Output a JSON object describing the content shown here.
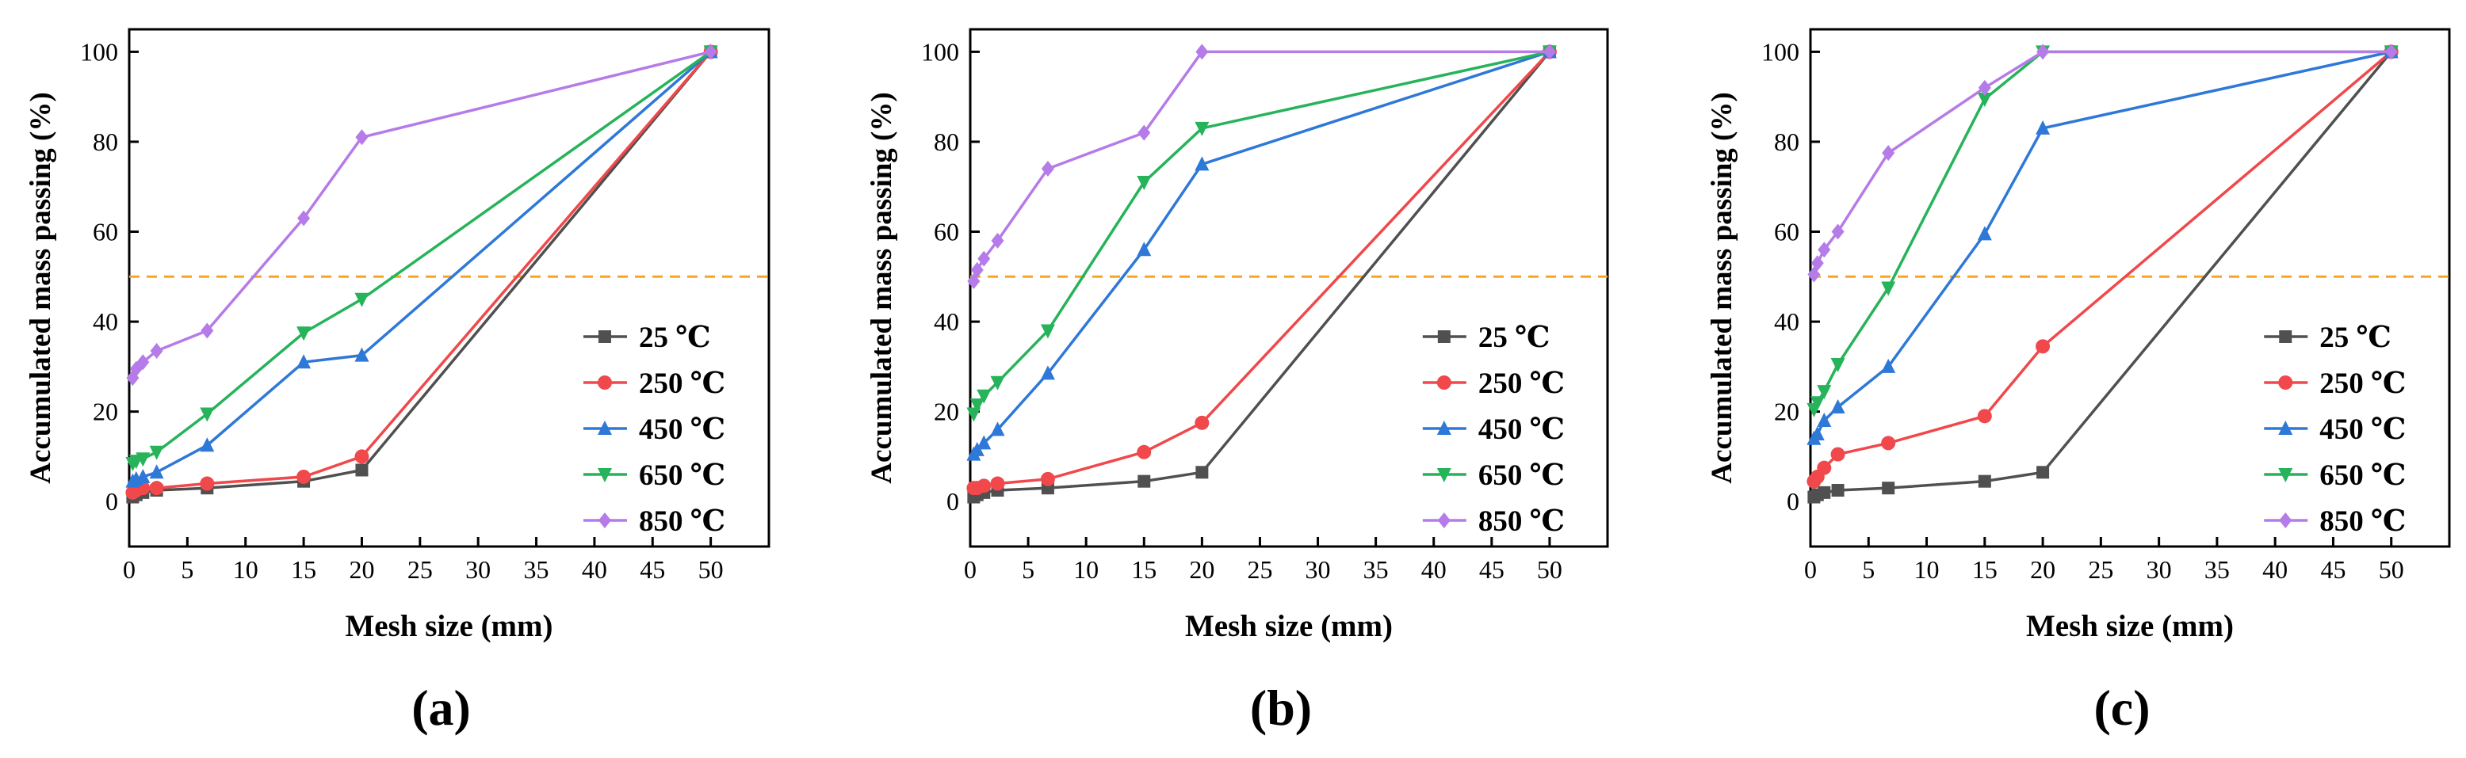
{
  "chart_data": [
    {
      "type": "line",
      "panel_label": "(a)",
      "xlabel": "Mesh size (mm)",
      "ylabel": "Accumulated mass passing (%)",
      "xlim": [
        0,
        55
      ],
      "ylim": [
        -10,
        105
      ],
      "xticks": [
        0,
        5,
        10,
        15,
        20,
        25,
        30,
        35,
        40,
        45,
        50
      ],
      "yticks": [
        0,
        20,
        40,
        60,
        80,
        100
      ],
      "reference_line": {
        "y": 50,
        "style": "dashed",
        "color": "#F5A623"
      },
      "legend_position": "lower-right",
      "series": [
        {
          "name": "25 ℃",
          "color": "#505050",
          "marker": "square",
          "points": [
            [
              0.3,
              1
            ],
            [
              0.6,
              1.5
            ],
            [
              1.18,
              2
            ],
            [
              2.36,
              2.5
            ],
            [
              6.7,
              3
            ],
            [
              15,
              4.5
            ],
            [
              20,
              7
            ],
            [
              50,
              100
            ]
          ]
        },
        {
          "name": "250 ℃",
          "color": "#F0484B",
          "marker": "circle",
          "points": [
            [
              0.3,
              2
            ],
            [
              0.6,
              2.5
            ],
            [
              1.18,
              3
            ],
            [
              2.36,
              3
            ],
            [
              6.7,
              4
            ],
            [
              15,
              5.5
            ],
            [
              20,
              10
            ],
            [
              50,
              100
            ]
          ]
        },
        {
          "name": "450 ℃",
          "color": "#2E78D8",
          "marker": "triangle-up",
          "points": [
            [
              0.3,
              4.5
            ],
            [
              0.6,
              5
            ],
            [
              1.18,
              5.5
            ],
            [
              2.36,
              6.5
            ],
            [
              6.7,
              12.5
            ],
            [
              15,
              31
            ],
            [
              20,
              32.5
            ],
            [
              50,
              100
            ]
          ]
        },
        {
          "name": "650 ℃",
          "color": "#26B35A",
          "marker": "triangle-down",
          "points": [
            [
              0.3,
              8.5
            ],
            [
              0.6,
              9
            ],
            [
              1.18,
              9.5
            ],
            [
              2.36,
              11
            ],
            [
              6.7,
              19.5
            ],
            [
              15,
              37.5
            ],
            [
              20,
              45
            ],
            [
              50,
              100
            ]
          ]
        },
        {
          "name": "850 ℃",
          "color": "#B57BE8",
          "marker": "diamond",
          "points": [
            [
              0.3,
              27.5
            ],
            [
              0.6,
              29.5
            ],
            [
              1.18,
              31
            ],
            [
              2.36,
              33.5
            ],
            [
              6.7,
              38
            ],
            [
              15,
              63
            ],
            [
              20,
              81
            ],
            [
              50,
              100
            ]
          ]
        }
      ]
    },
    {
      "type": "line",
      "panel_label": "(b)",
      "xlabel": "Mesh size (mm)",
      "ylabel": "Accumulated mass passing (%)",
      "xlim": [
        0,
        55
      ],
      "ylim": [
        -10,
        105
      ],
      "xticks": [
        0,
        5,
        10,
        15,
        20,
        25,
        30,
        35,
        40,
        45,
        50
      ],
      "yticks": [
        0,
        20,
        40,
        60,
        80,
        100
      ],
      "reference_line": {
        "y": 50,
        "style": "dashed",
        "color": "#F5A623"
      },
      "legend_position": "lower-right",
      "series": [
        {
          "name": "25 ℃",
          "color": "#505050",
          "marker": "square",
          "points": [
            [
              0.3,
              1
            ],
            [
              0.6,
              1.5
            ],
            [
              1.18,
              2
            ],
            [
              2.36,
              2.5
            ],
            [
              6.7,
              3
            ],
            [
              15,
              4.5
            ],
            [
              20,
              6.5
            ],
            [
              50,
              100
            ]
          ]
        },
        {
          "name": "250 ℃",
          "color": "#F0484B",
          "marker": "circle",
          "points": [
            [
              0.3,
              3
            ],
            [
              0.6,
              3
            ],
            [
              1.18,
              3.5
            ],
            [
              2.36,
              4
            ],
            [
              6.7,
              5
            ],
            [
              15,
              11
            ],
            [
              20,
              17.5
            ],
            [
              50,
              100
            ]
          ]
        },
        {
          "name": "450 ℃",
          "color": "#2E78D8",
          "marker": "triangle-up",
          "points": [
            [
              0.3,
              10.5
            ],
            [
              0.6,
              11.5
            ],
            [
              1.18,
              13
            ],
            [
              2.36,
              16
            ],
            [
              6.7,
              28.5
            ],
            [
              15,
              56
            ],
            [
              20,
              75
            ],
            [
              50,
              100
            ]
          ]
        },
        {
          "name": "650 ℃",
          "color": "#26B35A",
          "marker": "triangle-down",
          "points": [
            [
              0.3,
              19.5
            ],
            [
              0.6,
              21.5
            ],
            [
              1.18,
              23.5
            ],
            [
              2.36,
              26.5
            ],
            [
              6.7,
              38
            ],
            [
              15,
              71
            ],
            [
              20,
              83
            ],
            [
              50,
              100
            ]
          ]
        },
        {
          "name": "850 ℃",
          "color": "#B57BE8",
          "marker": "diamond",
          "points": [
            [
              0.3,
              49
            ],
            [
              0.6,
              51.5
            ],
            [
              1.18,
              54
            ],
            [
              2.36,
              58
            ],
            [
              6.7,
              74
            ],
            [
              15,
              82
            ],
            [
              20,
              100
            ],
            [
              50,
              100
            ]
          ]
        }
      ]
    },
    {
      "type": "line",
      "panel_label": "(c)",
      "xlabel": "Mesh size (mm)",
      "ylabel": "Accumulated mass passing (%)",
      "xlim": [
        0,
        55
      ],
      "ylim": [
        -10,
        105
      ],
      "xticks": [
        0,
        5,
        10,
        15,
        20,
        25,
        30,
        35,
        40,
        45,
        50
      ],
      "yticks": [
        0,
        20,
        40,
        60,
        80,
        100
      ],
      "reference_line": {
        "y": 50,
        "style": "dashed",
        "color": "#F5A623"
      },
      "legend_position": "lower-right",
      "series": [
        {
          "name": "25 ℃",
          "color": "#505050",
          "marker": "square",
          "points": [
            [
              0.3,
              1
            ],
            [
              0.6,
              1.5
            ],
            [
              1.18,
              2
            ],
            [
              2.36,
              2.5
            ],
            [
              6.7,
              3
            ],
            [
              15,
              4.5
            ],
            [
              20,
              6.5
            ],
            [
              50,
              100
            ]
          ]
        },
        {
          "name": "250 ℃",
          "color": "#F0484B",
          "marker": "circle",
          "points": [
            [
              0.3,
              4.5
            ],
            [
              0.6,
              5.5
            ],
            [
              1.18,
              7.5
            ],
            [
              2.36,
              10.5
            ],
            [
              6.7,
              13
            ],
            [
              15,
              19
            ],
            [
              20,
              34.5
            ],
            [
              50,
              100
            ]
          ]
        },
        {
          "name": "450 ℃",
          "color": "#2E78D8",
          "marker": "triangle-up",
          "points": [
            [
              0.3,
              14
            ],
            [
              0.6,
              15
            ],
            [
              1.18,
              18
            ],
            [
              2.36,
              21
            ],
            [
              6.7,
              30
            ],
            [
              15,
              59.5
            ],
            [
              20,
              83
            ],
            [
              50,
              100
            ]
          ]
        },
        {
          "name": "650 ℃",
          "color": "#26B35A",
          "marker": "triangle-down",
          "points": [
            [
              0.3,
              20.5
            ],
            [
              0.6,
              22
            ],
            [
              1.18,
              24.5
            ],
            [
              2.36,
              30.5
            ],
            [
              6.7,
              47.5
            ],
            [
              15,
              89.5
            ],
            [
              20,
              100
            ],
            [
              50,
              100
            ]
          ]
        },
        {
          "name": "850 ℃",
          "color": "#B57BE8",
          "marker": "diamond",
          "points": [
            [
              0.3,
              50.5
            ],
            [
              0.6,
              53
            ],
            [
              1.18,
              56
            ],
            [
              2.36,
              60
            ],
            [
              6.7,
              77.5
            ],
            [
              15,
              92
            ],
            [
              20,
              100
            ],
            [
              50,
              100
            ]
          ]
        }
      ]
    }
  ]
}
